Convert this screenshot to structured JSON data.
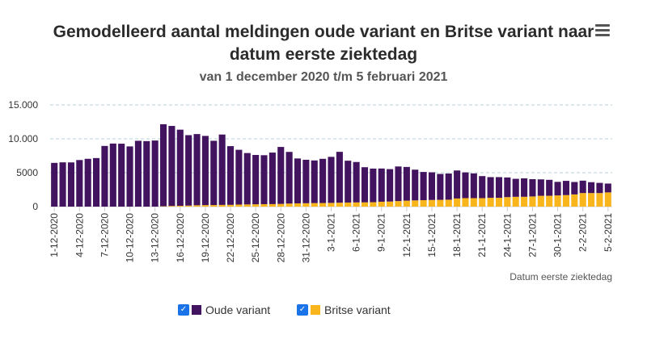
{
  "chart_data": {
    "type": "bar",
    "stacked": true,
    "title_line1": "Gemodelleerd aantal meldingen oude variant en Britse variant naar",
    "title_line2": "datum eerste ziektedag",
    "subtitle": "van 1 december 2020 t/m 5 februari 2021",
    "xlabel": "Datum eerste ziektedag",
    "ylabel": "",
    "ylim": [
      0,
      15000
    ],
    "yticks": [
      0,
      5000,
      10000,
      15000
    ],
    "ytick_labels": [
      "0",
      "5000",
      "10.000",
      "15.000"
    ],
    "categories": [
      "1-12-2020",
      "2-12-2020",
      "3-12-2020",
      "4-12-2020",
      "5-12-2020",
      "6-12-2020",
      "7-12-2020",
      "8-12-2020",
      "9-12-2020",
      "10-12-2020",
      "11-12-2020",
      "12-12-2020",
      "13-12-2020",
      "14-12-2020",
      "15-12-2020",
      "16-12-2020",
      "17-12-2020",
      "18-12-2020",
      "19-12-2020",
      "20-12-2020",
      "21-12-2020",
      "22-12-2020",
      "23-12-2020",
      "24-12-2020",
      "25-12-2020",
      "26-12-2020",
      "27-12-2020",
      "28-12-2020",
      "29-12-2020",
      "30-12-2020",
      "31-12-2020",
      "1-1-2021",
      "2-1-2021",
      "3-1-2021",
      "4-1-2021",
      "5-1-2021",
      "6-1-2021",
      "7-1-2021",
      "8-1-2021",
      "9-1-2021",
      "10-1-2021",
      "11-1-2021",
      "12-1-2021",
      "13-1-2021",
      "14-1-2021",
      "15-1-2021",
      "16-1-2021",
      "17-1-2021",
      "18-1-2021",
      "19-1-2021",
      "20-1-2021",
      "21-1-2021",
      "22-1-2021",
      "23-1-2021",
      "24-1-2021",
      "25-1-2021",
      "26-1-2021",
      "27-1-2021",
      "28-1-2021",
      "29-1-2021",
      "30-1-2021",
      "31-1-2021",
      "1-2-2021",
      "2-2-2021",
      "3-2-2021",
      "4-2-2021",
      "5-2-2021"
    ],
    "shown_tick_labels": [
      "1-12-2020",
      "4-12-2020",
      "7-12-2020",
      "10-12-2020",
      "13-12-2020",
      "16-12-2020",
      "19-12-2020",
      "22-12-2020",
      "25-12-2020",
      "28-12-2020",
      "31-12-2020",
      "3-1-2021",
      "6-1-2021",
      "9-1-2021",
      "12-1-2021",
      "15-1-2021",
      "18-1-2021",
      "21-1-2021",
      "24-1-2021",
      "27-1-2021",
      "30-1-2021",
      "2-2-2021",
      "5-2-2021"
    ],
    "series": [
      {
        "name": "Oude variant",
        "color": "#42145f",
        "values": [
          6450,
          6530,
          6520,
          6870,
          7050,
          7160,
          8950,
          9300,
          9280,
          8880,
          9710,
          9660,
          9750,
          12100,
          11800,
          11230,
          10390,
          10500,
          10210,
          9480,
          10380,
          8660,
          8080,
          7580,
          7280,
          7220,
          7600,
          8400,
          7620,
          6620,
          6410,
          6290,
          6520,
          6790,
          7500,
          6170,
          5960,
          5180,
          4960,
          4900,
          4780,
          5100,
          4970,
          4530,
          4160,
          4080,
          3820,
          3860,
          4130,
          3800,
          3650,
          3250,
          3050,
          3050,
          2900,
          2650,
          2720,
          2550,
          2420,
          2350,
          2000,
          2100,
          1830,
          1830,
          1600,
          1500,
          1300
        ]
      },
      {
        "name": "Britse variant",
        "color": "#f8b51c",
        "values": [
          0,
          0,
          0,
          0,
          0,
          0,
          0,
          0,
          0,
          0,
          0,
          0,
          0,
          50,
          100,
          120,
          150,
          200,
          220,
          230,
          250,
          260,
          300,
          320,
          340,
          360,
          370,
          400,
          450,
          480,
          500,
          520,
          530,
          550,
          580,
          600,
          620,
          630,
          650,
          720,
          750,
          820,
          880,
          920,
          950,
          980,
          1000,
          1020,
          1200,
          1250,
          1250,
          1250,
          1300,
          1300,
          1400,
          1450,
          1450,
          1500,
          1600,
          1600,
          1650,
          1700,
          1800,
          2000,
          2000,
          2000,
          2100
        ]
      }
    ],
    "legend_position": "bottom-center",
    "grid": true
  },
  "ui": {
    "menu_icon": "hamburger-menu-icon",
    "checkbox_mark": "✓"
  }
}
